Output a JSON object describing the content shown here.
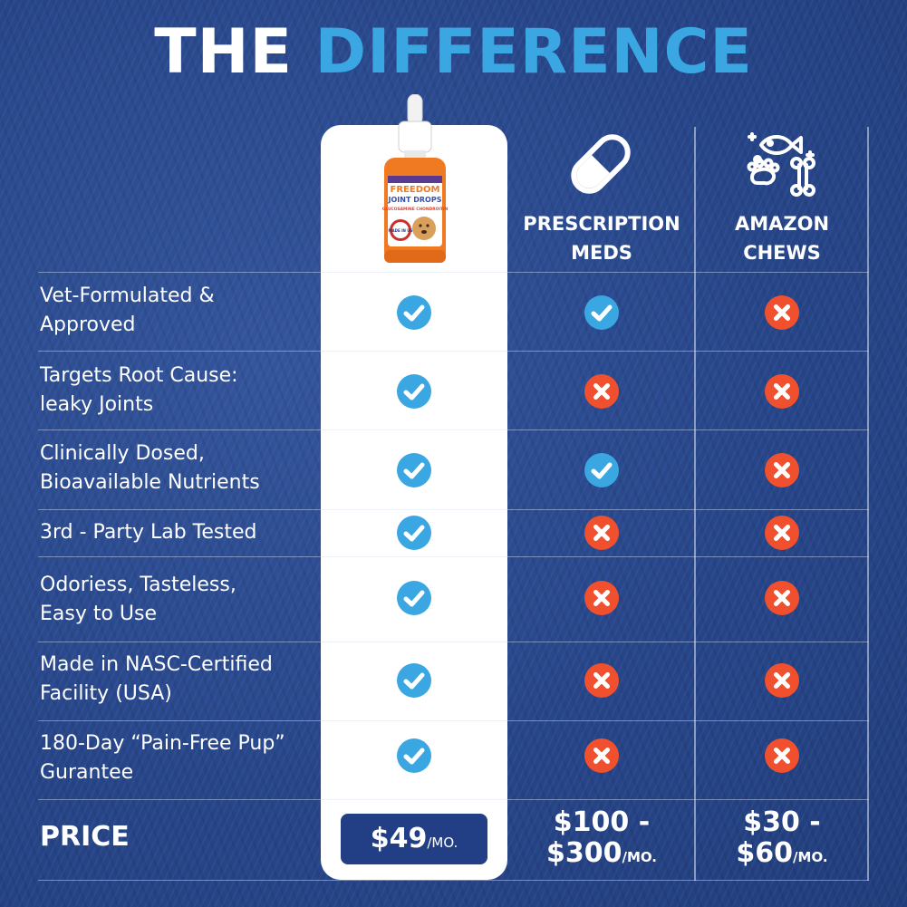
{
  "title": {
    "part1": "THE",
    "part2": "DIFFERENCE"
  },
  "product": {
    "brand": "FREEDOM",
    "name": "JOINT DROPS",
    "ingredients": "GLUCOSAMINE CHONDROITIN",
    "badge": "MADE IN US"
  },
  "columns": [
    {
      "line1": "PRESCRIPTION",
      "line2": "MEDS",
      "icon": "capsule-icon"
    },
    {
      "line1": "AMAZON",
      "line2": "CHEWS",
      "icon": "pet-treats-icon"
    }
  ],
  "rows": [
    {
      "label": "Vet-Formulated &\nApproved",
      "ours": true,
      "prescription": true,
      "amazon": false
    },
    {
      "label": "Targets Root Cause:\nleaky Joints",
      "ours": true,
      "prescription": false,
      "amazon": false
    },
    {
      "label": "Clinically Dosed,\nBioavailable Nutrients",
      "ours": true,
      "prescription": true,
      "amazon": false
    },
    {
      "label": "3rd - Party Lab Tested",
      "ours": true,
      "prescription": false,
      "amazon": false
    },
    {
      "label": "Odoriess, Tasteless,\nEasy to Use",
      "ours": true,
      "prescription": false,
      "amazon": false
    },
    {
      "label": "Made in NASC-Certified\nFacility (USA)",
      "ours": true,
      "prescription": false,
      "amazon": false
    },
    {
      "label": "180-Day “Pain-Free Pup”\nGurantee",
      "ours": true,
      "prescription": false,
      "amazon": false
    }
  ],
  "price": {
    "label": "PRICE",
    "ours_amount": "$49",
    "ours_unit": "/MO.",
    "prescription_line1": "$100 -",
    "prescription_line2": "$300",
    "prescription_unit": "/MO.",
    "amazon_line1": "$30 -",
    "amazon_line2": "$60",
    "amazon_unit": "/MO."
  },
  "colors": {
    "background": "#2b4a8e",
    "title_accent": "#3aa7e3",
    "check": "#3aa7e3",
    "cross": "#f0502d",
    "price_button": "#223f86"
  }
}
